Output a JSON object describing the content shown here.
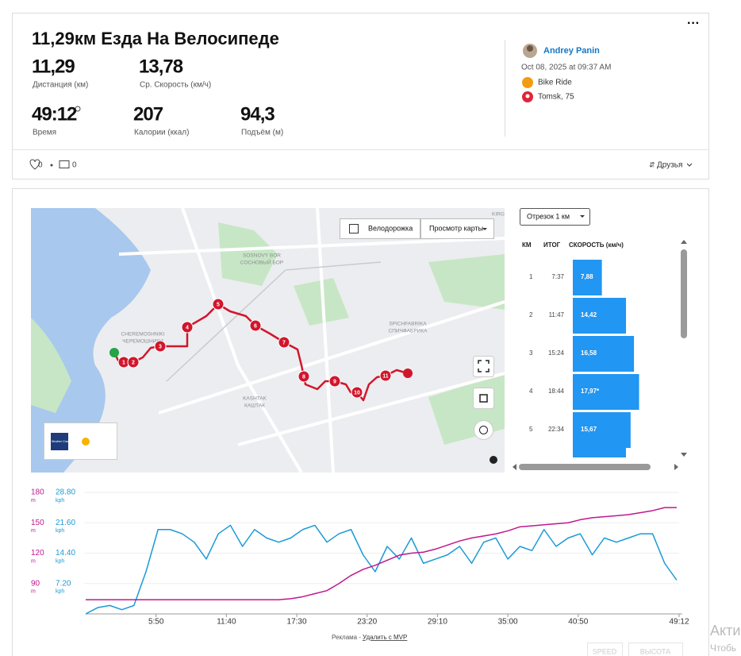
{
  "activity": {
    "title": "11,29км Езда На Велосипеде",
    "stats": [
      {
        "value": "11,29",
        "label": "Дистанция (км)"
      },
      {
        "value": "13,78",
        "label": "Ср. Скорость (км/ч)"
      },
      {
        "value": "49:12",
        "label": "Время"
      },
      {
        "value": "207",
        "label": "Калории (ккал)"
      },
      {
        "value": "94,3",
        "label": "Подъём (м)"
      }
    ]
  },
  "athlete": {
    "name": "Andrey Panin",
    "date": "Oct 08, 2025 at 09:37 AM",
    "activity_type": "Bike Ride",
    "location": "Tomsk, 75"
  },
  "social": {
    "likes": "0",
    "comments": "0",
    "visibility": "Друзья"
  },
  "map": {
    "bike_lanes": "Велодорожка",
    "view": "Просмотр карты",
    "weather_logo": "The Weather Channel",
    "places": [
      "SOSNOVY BOR",
      "СОСНОВЫЙ БОР",
      "CHEREMOSHNIKI",
      "ЧЕРЕМОШНИКИ",
      "SPICHFABRIKA",
      "СПИЧФАБРИКА",
      "KASHTAK",
      "КАШТАК",
      "KIRG"
    ],
    "markers": [
      "1",
      "2",
      "3",
      "4",
      "5",
      "6",
      "7",
      "8",
      "9",
      "10",
      "11"
    ]
  },
  "splits": {
    "type": "bar",
    "selector": "Отрезок 1 км",
    "headers": [
      "КМ",
      "ИТОГ",
      "СКОРОСТЬ (км/ч)"
    ],
    "categories": [
      "1",
      "2",
      "3",
      "4",
      "5"
    ],
    "times": [
      "7:37",
      "11:47",
      "15:24",
      "18:44",
      "22:34"
    ],
    "values": [
      7.88,
      14.42,
      16.58,
      17.97,
      15.67
    ],
    "value_labels": [
      "7,88",
      "14,42",
      "16,58",
      "17,97*",
      "15,67"
    ],
    "color": "#2196f3"
  },
  "chart_data": {
    "type": "line",
    "x": [
      0,
      1,
      2,
      3,
      4,
      5,
      6,
      7,
      8,
      9,
      10,
      11,
      12,
      13,
      14,
      15,
      16,
      17,
      18,
      19,
      20,
      21,
      22,
      23,
      24,
      25,
      26,
      27,
      28,
      29,
      30,
      31,
      32,
      33,
      34,
      35,
      36,
      37,
      38,
      39,
      40,
      41,
      42,
      43,
      44,
      45,
      46,
      47,
      48,
      49
    ],
    "xlim": [
      0,
      49.2
    ],
    "xticks": [
      {
        "value": 5.833,
        "label": "5:50"
      },
      {
        "value": 11.667,
        "label": "11:40"
      },
      {
        "value": 17.5,
        "label": "17:30"
      },
      {
        "value": 23.333,
        "label": "23:20"
      },
      {
        "value": 29.167,
        "label": "29:10"
      },
      {
        "value": 35,
        "label": "35:00"
      },
      {
        "value": 40.833,
        "label": "40:50"
      },
      {
        "value": 49.2,
        "label": "49:12"
      }
    ],
    "ylim": [
      0,
      28.8
    ],
    "yticks": [
      {
        "value": 7.2,
        "label": "7.20"
      },
      {
        "value": 14.4,
        "label": "14.40"
      },
      {
        "value": 21.6,
        "label": "21.60"
      },
      {
        "value": 28.8,
        "label": "28.80"
      }
    ],
    "y_unit": "kph",
    "y2lim": [
      60,
      180
    ],
    "y2ticks": [
      90,
      120,
      150,
      180
    ],
    "y2_unit": "m",
    "grid": true,
    "series": [
      {
        "name": "SPEED",
        "color": "#1a9ad6",
        "values": [
          0,
          1.5,
          2,
          1,
          2,
          10,
          20,
          20,
          19,
          17,
          13,
          19,
          21,
          16,
          20,
          18,
          17,
          18,
          20,
          21,
          17,
          19,
          20,
          14,
          10,
          16,
          13,
          18,
          12,
          13,
          14,
          16,
          12,
          17,
          18,
          13,
          16,
          15,
          20,
          16,
          18,
          19,
          14,
          18,
          17,
          18,
          19,
          19,
          12,
          8
        ]
      },
      {
        "name": "ВЫСОТА",
        "color": "#c0188f",
        "axis": "y2",
        "values": [
          74,
          74,
          74,
          74,
          74,
          74,
          74,
          74,
          74,
          74,
          74,
          74,
          74,
          74,
          74,
          74,
          74,
          75,
          77,
          80,
          83,
          90,
          98,
          104,
          108,
          113,
          118,
          120,
          121,
          124,
          128,
          132,
          135,
          137,
          139,
          142,
          146,
          147,
          148,
          149,
          150,
          153,
          155,
          156,
          157,
          158,
          160,
          162,
          165,
          165
        ]
      }
    ]
  },
  "ad": {
    "label": "Реклама -",
    "link": "Удалить с MVP"
  },
  "watermark": [
    "Акти",
    "Чтобь"
  ]
}
